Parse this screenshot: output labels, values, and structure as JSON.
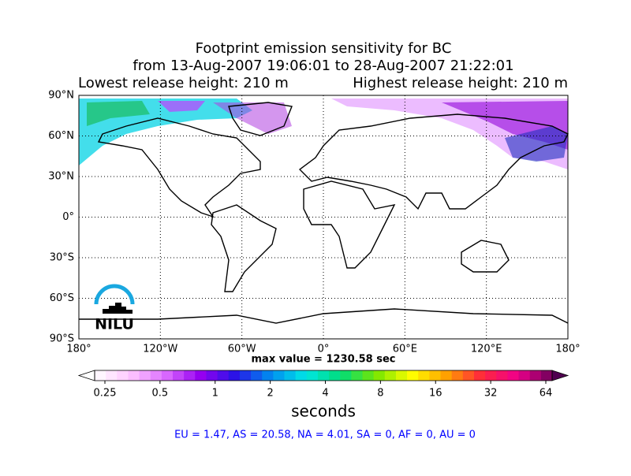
{
  "title": {
    "line1": "Footprint emission sensitivity for BC",
    "line2": "from 13-Aug-2007 19:06:01 to 28-Aug-2007 21:22:01",
    "lowest": "Lowest release height: 210 m",
    "highest": "Highest release height: 210 m"
  },
  "map": {
    "lat_labels": [
      "90°N",
      "60°N",
      "30°N",
      "0°",
      "30°S",
      "60°S",
      "90°S"
    ],
    "lon_labels": [
      "180°",
      "120°W",
      "60°W",
      "0°",
      "60°E",
      "120°E",
      "180°"
    ],
    "max_value": "max value = 1230.58 sec",
    "logo": "NILU"
  },
  "colorbar": {
    "ticks": [
      "0.25",
      "0.5",
      "1",
      "2",
      "4",
      "8",
      "16",
      "32",
      "64"
    ],
    "label": "seconds"
  },
  "summary": "EU = 1.47,  AS = 20.58,  NA = 4.01,  SA = 0,  AF = 0,  AU = 0"
}
